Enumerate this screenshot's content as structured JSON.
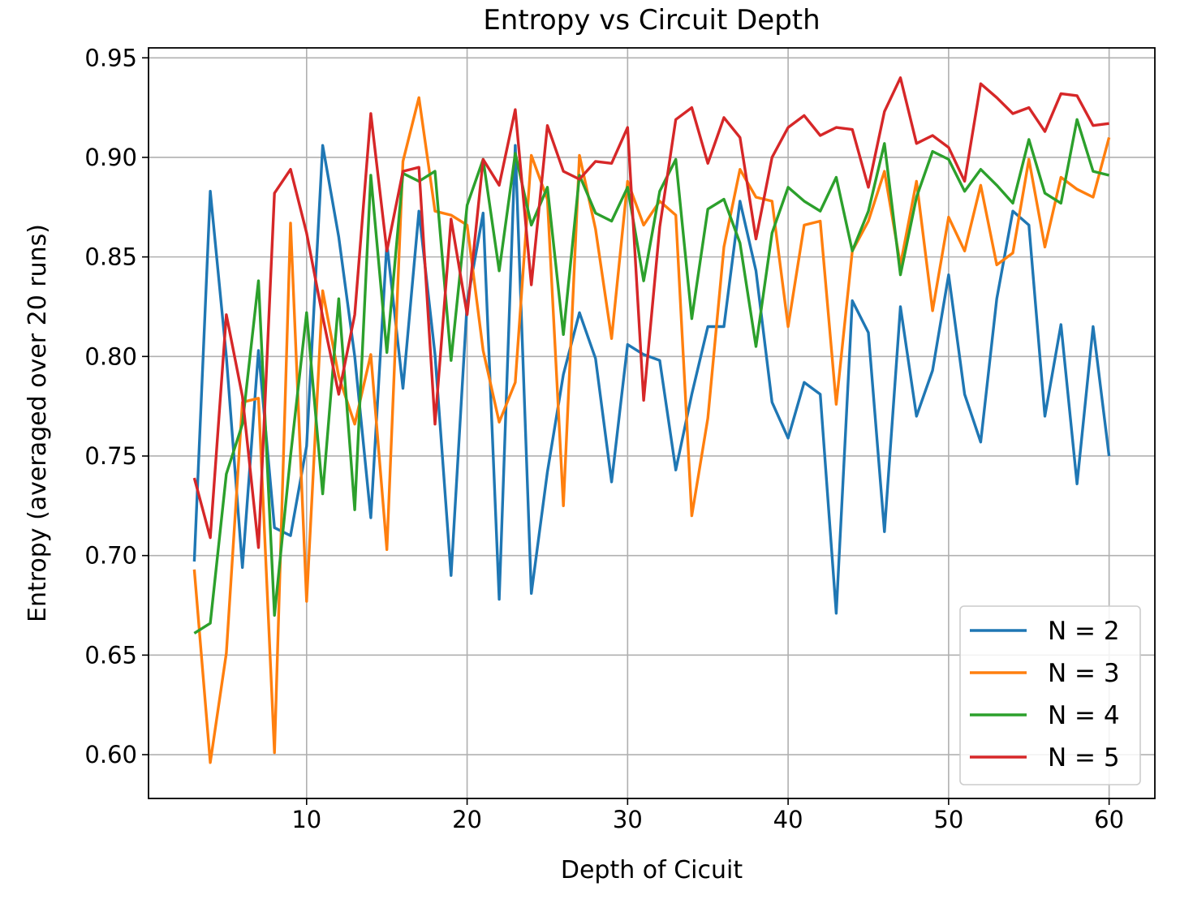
{
  "chart_data": {
    "type": "line",
    "title": "Entropy vs Circuit Depth",
    "xlabel": "Depth of Cicuit",
    "ylabel": "Entropy (averaged over 20 runs)",
    "xlim": [
      0.15,
      62.85
    ],
    "ylim": [
      0.578,
      0.955
    ],
    "xticks": [
      10,
      20,
      30,
      40,
      50,
      60
    ],
    "yticks": [
      0.6,
      0.65,
      0.7,
      0.75,
      0.8,
      0.85,
      0.9,
      0.95
    ],
    "xtick_labels": [
      "10",
      "20",
      "30",
      "40",
      "50",
      "60"
    ],
    "ytick_labels": [
      "0.60",
      "0.65",
      "0.70",
      "0.75",
      "0.80",
      "0.85",
      "0.90",
      "0.95"
    ],
    "grid": true,
    "legend_position": "lower-right",
    "x": [
      3,
      4,
      5,
      6,
      7,
      8,
      9,
      10,
      11,
      12,
      13,
      14,
      15,
      16,
      17,
      18,
      19,
      20,
      21,
      22,
      23,
      24,
      25,
      26,
      27,
      28,
      29,
      30,
      31,
      32,
      33,
      34,
      35,
      36,
      37,
      38,
      39,
      40,
      41,
      42,
      43,
      44,
      45,
      46,
      47,
      48,
      49,
      50,
      51,
      52,
      53,
      54,
      55,
      56,
      57,
      58,
      59,
      60
    ],
    "series": [
      {
        "name": "N = 2",
        "color": "#1f77b4",
        "values": [
          0.697,
          0.883,
          0.8,
          0.694,
          0.803,
          0.714,
          0.71,
          0.755,
          0.906,
          0.86,
          0.8,
          0.719,
          0.857,
          0.784,
          0.873,
          0.801,
          0.69,
          0.827,
          0.872,
          0.678,
          0.906,
          0.681,
          0.742,
          0.791,
          0.822,
          0.799,
          0.737,
          0.806,
          0.801,
          0.798,
          0.743,
          0.781,
          0.815,
          0.815,
          0.878,
          0.843,
          0.777,
          0.759,
          0.787,
          0.781,
          0.671,
          0.828,
          0.812,
          0.712,
          0.825,
          0.77,
          0.793,
          0.841,
          0.781,
          0.757,
          0.829,
          0.873,
          0.866,
          0.77,
          0.816,
          0.736,
          0.815,
          0.75
        ]
      },
      {
        "name": "N = 3",
        "color": "#ff7f0e",
        "values": [
          0.693,
          0.596,
          0.651,
          0.777,
          0.779,
          0.601,
          0.867,
          0.677,
          0.833,
          0.79,
          0.766,
          0.801,
          0.703,
          0.898,
          0.93,
          0.873,
          0.871,
          0.866,
          0.803,
          0.767,
          0.787,
          0.901,
          0.879,
          0.725,
          0.901,
          0.864,
          0.809,
          0.888,
          0.866,
          0.878,
          0.871,
          0.72,
          0.769,
          0.855,
          0.894,
          0.88,
          0.878,
          0.815,
          0.866,
          0.868,
          0.776,
          0.853,
          0.868,
          0.893,
          0.846,
          0.888,
          0.823,
          0.87,
          0.853,
          0.886,
          0.846,
          0.852,
          0.899,
          0.855,
          0.89,
          0.884,
          0.88,
          0.91
        ]
      },
      {
        "name": "N = 4",
        "color": "#2ca02c",
        "values": [
          0.661,
          0.666,
          0.741,
          0.766,
          0.838,
          0.67,
          0.75,
          0.822,
          0.731,
          0.829,
          0.723,
          0.891,
          0.802,
          0.892,
          0.888,
          0.893,
          0.798,
          0.876,
          0.899,
          0.843,
          0.902,
          0.866,
          0.885,
          0.811,
          0.891,
          0.872,
          0.868,
          0.885,
          0.838,
          0.883,
          0.899,
          0.819,
          0.874,
          0.879,
          0.857,
          0.805,
          0.862,
          0.885,
          0.878,
          0.873,
          0.89,
          0.853,
          0.873,
          0.907,
          0.841,
          0.88,
          0.903,
          0.899,
          0.883,
          0.894,
          0.886,
          0.877,
          0.909,
          0.882,
          0.877,
          0.919,
          0.893,
          0.891
        ]
      },
      {
        "name": "N = 5",
        "color": "#d62728",
        "values": [
          0.739,
          0.709,
          0.821,
          0.78,
          0.704,
          0.882,
          0.894,
          0.862,
          0.82,
          0.781,
          0.821,
          0.922,
          0.853,
          0.893,
          0.895,
          0.766,
          0.869,
          0.821,
          0.899,
          0.886,
          0.924,
          0.836,
          0.916,
          0.893,
          0.889,
          0.898,
          0.897,
          0.915,
          0.778,
          0.865,
          0.919,
          0.925,
          0.897,
          0.92,
          0.91,
          0.859,
          0.9,
          0.915,
          0.921,
          0.911,
          0.915,
          0.914,
          0.885,
          0.923,
          0.94,
          0.907,
          0.911,
          0.905,
          0.888,
          0.937,
          0.93,
          0.922,
          0.925,
          0.913,
          0.932,
          0.931,
          0.916,
          0.917
        ]
      }
    ]
  }
}
